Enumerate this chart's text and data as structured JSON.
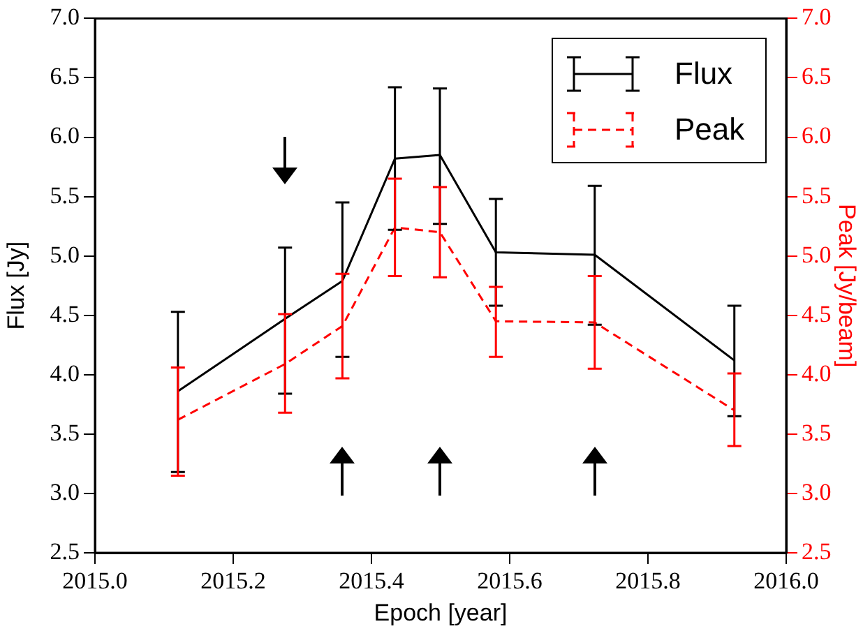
{
  "chart_data": {
    "type": "line",
    "xlabel": "Epoch [year]",
    "ylabel": "Flux [Jy]",
    "y2label": "Peak [Jy/beam]",
    "x": [
      2015.12,
      2015.275,
      2015.358,
      2015.434,
      2015.499,
      2015.58,
      2015.723,
      2015.925
    ],
    "series": [
      {
        "name": "Flux",
        "color": "#000000",
        "line_style": "solid",
        "values": [
          3.86,
          4.47,
          4.79,
          5.82,
          5.85,
          5.03,
          5.01,
          4.12
        ],
        "errors": [
          [
            3.18,
            4.53
          ],
          [
            3.84,
            5.07
          ],
          [
            4.15,
            5.45
          ],
          [
            5.22,
            6.42
          ],
          [
            5.27,
            6.41
          ],
          [
            4.58,
            5.48
          ],
          [
            4.42,
            5.59
          ],
          [
            3.65,
            4.58
          ]
        ]
      },
      {
        "name": "Peak",
        "color": "#ff0000",
        "line_style": "dashed",
        "axis": "y2",
        "values": [
          3.62,
          4.09,
          4.41,
          5.24,
          5.2,
          4.45,
          4.44,
          3.7
        ],
        "errors": [
          [
            3.15,
            4.06
          ],
          [
            3.68,
            4.51
          ],
          [
            3.97,
            4.85
          ],
          [
            4.83,
            5.65
          ],
          [
            4.82,
            5.58
          ],
          [
            4.15,
            4.74
          ],
          [
            4.05,
            4.83
          ],
          [
            3.4,
            4.01
          ]
        ]
      }
    ],
    "xlim": [
      2015.0,
      2016.0
    ],
    "xticks": [
      {
        "value": 2015.0,
        "label": "2015.0"
      },
      2015.2,
      2015.4,
      2015.6,
      2015.8,
      {
        "value": 2016.0,
        "label": "2016.0"
      }
    ],
    "ylim": [
      2.5,
      7.0
    ],
    "yticks": [
      2.5,
      {
        "value": 3.0,
        "label": "3.0"
      },
      3.5,
      {
        "value": 4.0,
        "label": "4.0"
      },
      4.5,
      {
        "value": 5.0,
        "label": "5.0"
      },
      5.5,
      {
        "value": 6.0,
        "label": "6.0"
      },
      6.5,
      {
        "value": 7.0,
        "label": "7.0"
      }
    ],
    "y2lim": [
      2.5,
      7.0
    ],
    "y2ticks": [
      2.5,
      {
        "value": 3.0,
        "label": "3.0"
      },
      3.5,
      {
        "value": 4.0,
        "label": "4.0"
      },
      4.5,
      {
        "value": 5.0,
        "label": "5.0"
      },
      5.5,
      {
        "value": 6.0,
        "label": "6.0"
      },
      6.5,
      {
        "value": 7.0,
        "label": "7.0"
      }
    ],
    "legend": "top right",
    "grid": false,
    "marker": "none"
  }
}
